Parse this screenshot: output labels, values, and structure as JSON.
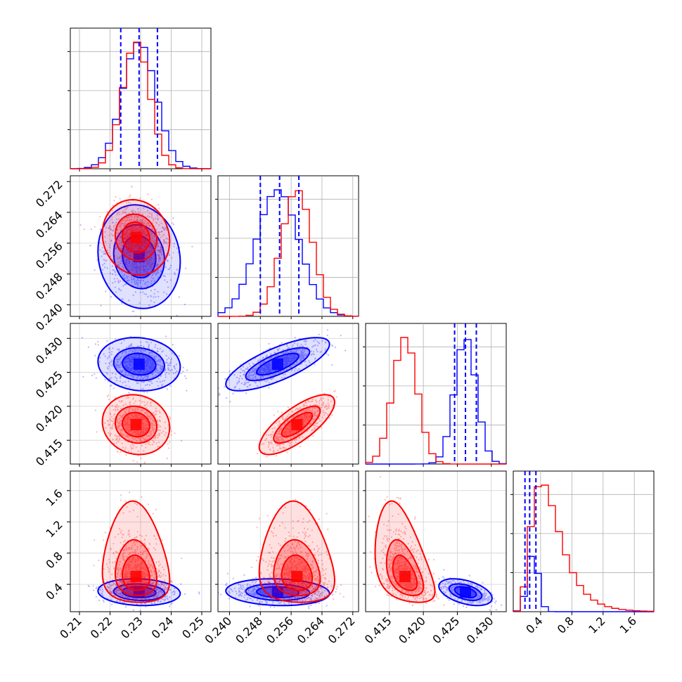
{
  "chart_data": {
    "type": "corner",
    "grid": true,
    "colors": {
      "series_a": "#0000ff",
      "series_b": "#ff0000"
    },
    "series": [
      {
        "color": "#0000ff",
        "means": [
          0.2295,
          0.2525,
          0.4262,
          0.3
        ],
        "sds": [
          0.0055,
          0.0055,
          0.0016,
          0.07
        ],
        "quantile_lines": [
          0.2235,
          0.2295,
          0.2355
        ]
      },
      {
        "color": "#ff0000",
        "means": [
          0.2285,
          0.2575,
          0.4173,
          0.5
        ],
        "sds": [
          0.0045,
          0.004,
          0.0018,
          0.22
        ]
      }
    ],
    "parameters": [
      {
        "range": [
          0.207,
          0.253
        ],
        "ticks": [
          0.21,
          0.22,
          0.23,
          0.24,
          0.25
        ],
        "tick_labels": [
          "0.21",
          "0.22",
          "0.23",
          "0.24",
          "0.25"
        ]
      },
      {
        "range": [
          0.237,
          0.2735
        ],
        "ticks": [
          0.24,
          0.248,
          0.256,
          0.264,
          0.272
        ],
        "tick_labels": [
          "0.240",
          "0.248",
          "0.256",
          "0.264",
          "0.272"
        ]
      },
      {
        "range": [
          0.4115,
          0.4322
        ],
        "ticks": [
          0.415,
          0.42,
          0.425,
          0.43
        ],
        "tick_labels": [
          "0.415",
          "0.420",
          "0.425",
          "0.430"
        ]
      },
      {
        "range": [
          0.05,
          1.85
        ],
        "ticks": [
          0.4,
          0.8,
          1.2,
          1.6
        ],
        "tick_labels": [
          "0.4",
          "0.8",
          "1.2",
          "1.6"
        ]
      }
    ],
    "diagonal_quantiles": [
      [
        0.2235,
        0.2295,
        0.2355
      ],
      [
        0.248,
        0.253,
        0.258
      ],
      [
        0.4246,
        0.4262,
        0.4278
      ],
      [
        0.2,
        0.26,
        0.34
      ]
    ]
  }
}
